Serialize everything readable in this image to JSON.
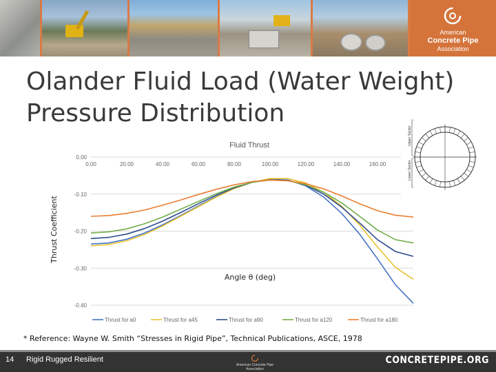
{
  "slide": {
    "title": "Olander Fluid Load (Water Weight) Pressure Distribution",
    "reference": "* Reference: Wayne W. Smith “Stresses in Rigid Pipe”, Technical Publications, ASCE, 1978",
    "page_number": "14",
    "tagline": "Rigid Rugged Resilient",
    "website": "CONCRETEPIPE.ORG"
  },
  "logo": {
    "line1": "American",
    "line2": "Concrete Pipe",
    "line3": "Association",
    "footer_text": "American Concrete Pipe Association"
  },
  "diagram": {
    "upper_label": "Upper Sector",
    "lower_label": "Lower Sector"
  },
  "colors": {
    "banner": "#d97a45",
    "footer": "#333333",
    "series_a0": "#4472c4",
    "series_a45": "#e8c12e",
    "series_a90": "#2e4a8c",
    "series_a120": "#70ad47",
    "series_a180": "#ed7d31"
  },
  "chart_data": {
    "type": "line",
    "title": "Fluid Thrust",
    "xlabel": "Angle θ (deg)",
    "ylabel": "Thrust Coefficient",
    "xlim": [
      0,
      180
    ],
    "ylim": [
      -0.4,
      0.0
    ],
    "x_ticks": [
      "0.00",
      "20.00",
      "40.00",
      "60.00",
      "80.00",
      "100.00",
      "120.00",
      "140.00",
      "160.00"
    ],
    "y_ticks": [
      "0.00",
      "-0.10",
      "-0.20",
      "-0.30",
      "-0.40"
    ],
    "grid": true,
    "legend_position": "bottom",
    "x": [
      0,
      10,
      20,
      30,
      40,
      50,
      60,
      70,
      80,
      90,
      100,
      110,
      120,
      130,
      140,
      150,
      160,
      170,
      180
    ],
    "series": [
      {
        "name": "Thrust for a0",
        "color": "#4472c4",
        "values": [
          -0.235,
          -0.232,
          -0.222,
          -0.205,
          -0.183,
          -0.158,
          -0.132,
          -0.107,
          -0.085,
          -0.068,
          -0.06,
          -0.062,
          -0.078,
          -0.108,
          -0.152,
          -0.208,
          -0.275,
          -0.345,
          -0.395
        ]
      },
      {
        "name": "Thrust for a45",
        "color": "#e8c12e",
        "values": [
          -0.24,
          -0.236,
          -0.226,
          -0.209,
          -0.186,
          -0.16,
          -0.134,
          -0.108,
          -0.085,
          -0.068,
          -0.058,
          -0.058,
          -0.07,
          -0.095,
          -0.133,
          -0.183,
          -0.243,
          -0.298,
          -0.33
        ]
      },
      {
        "name": "Thrust for a90",
        "color": "#2e4a8c",
        "values": [
          -0.22,
          -0.217,
          -0.208,
          -0.193,
          -0.173,
          -0.15,
          -0.126,
          -0.103,
          -0.083,
          -0.068,
          -0.061,
          -0.063,
          -0.076,
          -0.1,
          -0.135,
          -0.178,
          -0.223,
          -0.255,
          -0.268
        ]
      },
      {
        "name": "Thrust for a120",
        "color": "#70ad47",
        "values": [
          -0.205,
          -0.202,
          -0.194,
          -0.18,
          -0.162,
          -0.141,
          -0.12,
          -0.099,
          -0.081,
          -0.068,
          -0.062,
          -0.064,
          -0.075,
          -0.095,
          -0.124,
          -0.16,
          -0.197,
          -0.223,
          -0.232
        ]
      },
      {
        "name": "Thrust for a180",
        "color": "#ed7d31",
        "values": [
          -0.16,
          -0.158,
          -0.152,
          -0.143,
          -0.13,
          -0.116,
          -0.101,
          -0.087,
          -0.075,
          -0.066,
          -0.062,
          -0.064,
          -0.072,
          -0.086,
          -0.105,
          -0.126,
          -0.145,
          -0.157,
          -0.162
        ]
      }
    ]
  }
}
